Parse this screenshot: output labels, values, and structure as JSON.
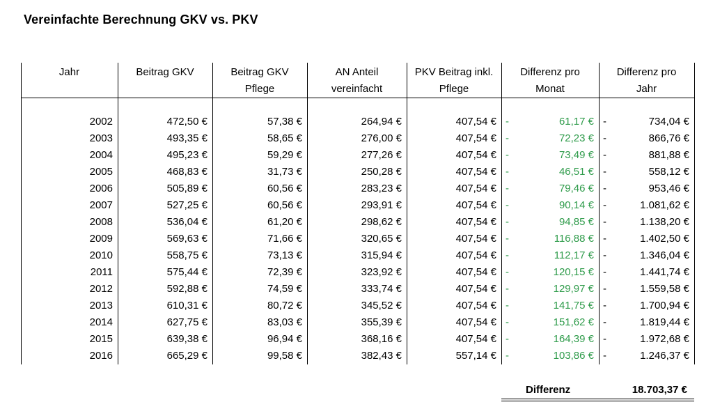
{
  "title": "Vereinfachte Berechnung GKV vs. PKV",
  "headers": [
    {
      "line1": "Jahr",
      "line2": ""
    },
    {
      "line1": "Beitrag GKV",
      "line2": ""
    },
    {
      "line1": "Beitrag GKV",
      "line2": "Pflege"
    },
    {
      "line1": "AN Anteil",
      "line2": "vereinfacht"
    },
    {
      "line1": "PKV Beitrag inkl.",
      "line2": "Pflege"
    },
    {
      "line1": "Differenz pro",
      "line2": "Monat"
    },
    {
      "line1": "Differenz pro",
      "line2": "Jahr"
    }
  ],
  "dash": "-",
  "rows": [
    {
      "jahr": "2002",
      "gkv": "472,50 €",
      "pflege": "57,38 €",
      "an": "264,94 €",
      "pkv": "407,54 €",
      "monat": "61,17 €",
      "jahr_diff": "734,04 €"
    },
    {
      "jahr": "2003",
      "gkv": "493,35 €",
      "pflege": "58,65 €",
      "an": "276,00 €",
      "pkv": "407,54 €",
      "monat": "72,23 €",
      "jahr_diff": "866,76 €"
    },
    {
      "jahr": "2004",
      "gkv": "495,23 €",
      "pflege": "59,29 €",
      "an": "277,26 €",
      "pkv": "407,54 €",
      "monat": "73,49 €",
      "jahr_diff": "881,88 €"
    },
    {
      "jahr": "2005",
      "gkv": "468,83 €",
      "pflege": "31,73 €",
      "an": "250,28 €",
      "pkv": "407,54 €",
      "monat": "46,51 €",
      "jahr_diff": "558,12 €"
    },
    {
      "jahr": "2006",
      "gkv": "505,89 €",
      "pflege": "60,56 €",
      "an": "283,23 €",
      "pkv": "407,54 €",
      "monat": "79,46 €",
      "jahr_diff": "953,46 €"
    },
    {
      "jahr": "2007",
      "gkv": "527,25 €",
      "pflege": "60,56 €",
      "an": "293,91 €",
      "pkv": "407,54 €",
      "monat": "90,14 €",
      "jahr_diff": "1.081,62 €"
    },
    {
      "jahr": "2008",
      "gkv": "536,04 €",
      "pflege": "61,20 €",
      "an": "298,62 €",
      "pkv": "407,54 €",
      "monat": "94,85 €",
      "jahr_diff": "1.138,20 €"
    },
    {
      "jahr": "2009",
      "gkv": "569,63 €",
      "pflege": "71,66 €",
      "an": "320,65 €",
      "pkv": "407,54 €",
      "monat": "116,88 €",
      "jahr_diff": "1.402,50 €"
    },
    {
      "jahr": "2010",
      "gkv": "558,75 €",
      "pflege": "73,13 €",
      "an": "315,94 €",
      "pkv": "407,54 €",
      "monat": "112,17 €",
      "jahr_diff": "1.346,04 €"
    },
    {
      "jahr": "2011",
      "gkv": "575,44 €",
      "pflege": "72,39 €",
      "an": "323,92 €",
      "pkv": "407,54 €",
      "monat": "120,15 €",
      "jahr_diff": "1.441,74 €"
    },
    {
      "jahr": "2012",
      "gkv": "592,88 €",
      "pflege": "74,59 €",
      "an": "333,74 €",
      "pkv": "407,54 €",
      "monat": "129,97 €",
      "jahr_diff": "1.559,58 €"
    },
    {
      "jahr": "2013",
      "gkv": "610,31 €",
      "pflege": "80,72 €",
      "an": "345,52 €",
      "pkv": "407,54 €",
      "monat": "141,75 €",
      "jahr_diff": "1.700,94 €"
    },
    {
      "jahr": "2014",
      "gkv": "627,75 €",
      "pflege": "83,03 €",
      "an": "355,39 €",
      "pkv": "407,54 €",
      "monat": "151,62 €",
      "jahr_diff": "1.819,44 €"
    },
    {
      "jahr": "2015",
      "gkv": "639,38 €",
      "pflege": "96,94 €",
      "an": "368,16 €",
      "pkv": "407,54 €",
      "monat": "164,39 €",
      "jahr_diff": "1.972,68 €"
    },
    {
      "jahr": "2016",
      "gkv": "665,29 €",
      "pflege": "99,58 €",
      "an": "382,43 €",
      "pkv": "557,14 €",
      "monat": "103,86 €",
      "jahr_diff": "1.246,37 €"
    }
  ],
  "total": {
    "label": "Differenz",
    "value": "18.703,37 €"
  },
  "colors": {
    "positive": "#2e9b4a"
  }
}
